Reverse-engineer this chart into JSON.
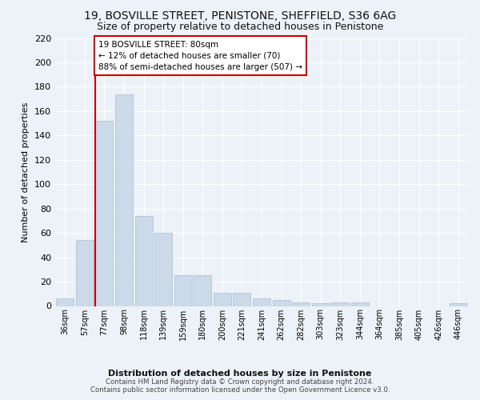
{
  "title": "19, BOSVILLE STREET, PENISTONE, SHEFFIELD, S36 6AG",
  "subtitle": "Size of property relative to detached houses in Penistone",
  "xlabel": "Distribution of detached houses by size in Penistone",
  "ylabel": "Number of detached properties",
  "bar_labels": [
    "36sqm",
    "57sqm",
    "77sqm",
    "98sqm",
    "118sqm",
    "139sqm",
    "159sqm",
    "180sqm",
    "200sqm",
    "221sqm",
    "241sqm",
    "262sqm",
    "282sqm",
    "303sqm",
    "323sqm",
    "344sqm",
    "364sqm",
    "385sqm",
    "405sqm",
    "426sqm",
    "446sqm"
  ],
  "bar_values": [
    6,
    54,
    152,
    174,
    74,
    60,
    25,
    25,
    11,
    11,
    6,
    5,
    3,
    2,
    3,
    3,
    0,
    0,
    0,
    0,
    2
  ],
  "bar_color": "#ccd9e8",
  "bar_edge_color": "#aabcce",
  "property_line_bar_idx": 2,
  "annotation_title": "19 BOSVILLE STREET: 80sqm",
  "annotation_line1": "← 12% of detached houses are smaller (70)",
  "annotation_line2": "88% of semi-detached houses are larger (507) →",
  "annotation_box_color": "#ffffff",
  "annotation_border_color": "#cc0000",
  "vline_color": "#cc0000",
  "ylim": [
    0,
    220
  ],
  "yticks": [
    0,
    20,
    40,
    60,
    80,
    100,
    120,
    140,
    160,
    180,
    200,
    220
  ],
  "footer_line1": "Contains HM Land Registry data © Crown copyright and database right 2024.",
  "footer_line2": "Contains public sector information licensed under the Open Government Licence v3.0.",
  "bg_color": "#edf2f8",
  "grid_color": "#ffffff",
  "title_fontsize": 10,
  "subtitle_fontsize": 9
}
